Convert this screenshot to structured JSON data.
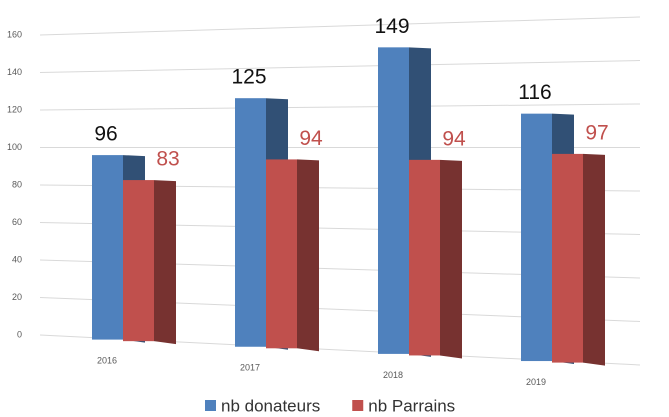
{
  "chart_data": {
    "type": "bar",
    "categories": [
      "2016",
      "2017",
      "2018",
      "2019"
    ],
    "series": [
      {
        "name": "nb donateurs",
        "color": "#4f81bd",
        "values": [
          96,
          125,
          149,
          116
        ]
      },
      {
        "name": "nb Parrains",
        "color": "#c0504d",
        "values": [
          83,
          94,
          94,
          97
        ]
      }
    ],
    "ylim": [
      0,
      160
    ],
    "yticks": [
      0,
      20,
      40,
      60,
      80,
      100,
      120,
      140,
      160
    ],
    "grid": true,
    "legend": "bottom"
  }
}
